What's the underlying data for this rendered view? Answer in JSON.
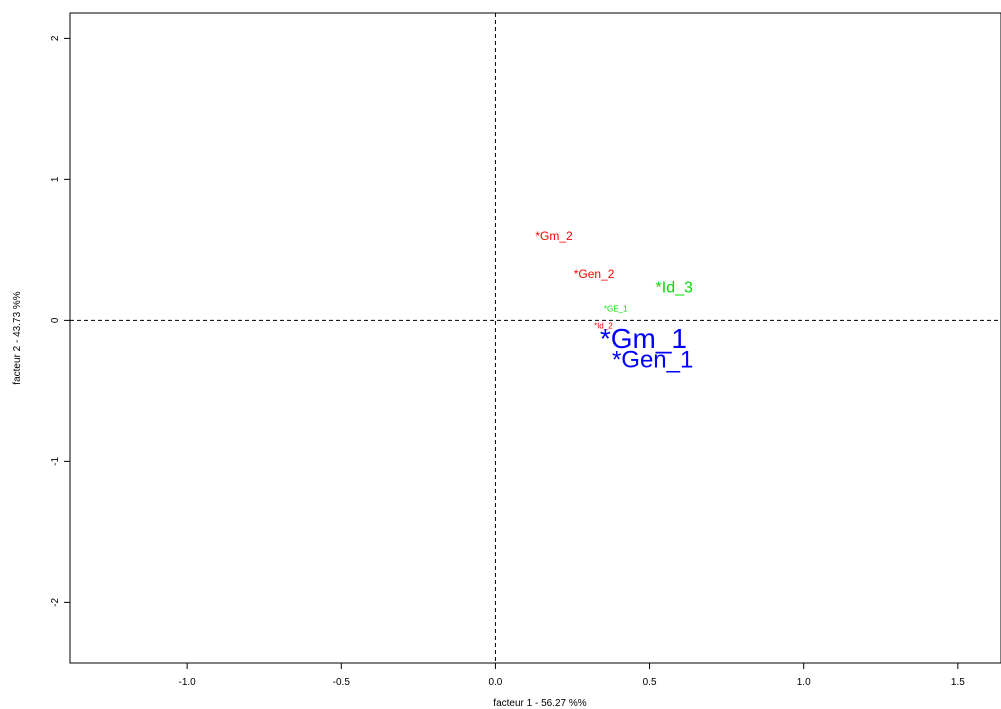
{
  "chart_data": {
    "type": "scatter",
    "xlabel": "facteur  1  - 56.27 %%",
    "ylabel": "facteur 2  - 43.73 %%",
    "xlim": [
      -1.38,
      1.64
    ],
    "ylim": [
      -2.43,
      2.18
    ],
    "xticks": [
      {
        "value": -1.0,
        "label": "-1.0"
      },
      {
        "value": -0.5,
        "label": "-0.5"
      },
      {
        "value": 0.0,
        "label": "0.0"
      },
      {
        "value": 0.5,
        "label": "0.5"
      },
      {
        "value": 1.0,
        "label": "1.0"
      },
      {
        "value": 1.5,
        "label": "1.5"
      }
    ],
    "yticks": [
      {
        "value": -2,
        "label": "-2"
      },
      {
        "value": -1,
        "label": "-1"
      },
      {
        "value": 0,
        "label": "0"
      },
      {
        "value": 1,
        "label": "1"
      },
      {
        "value": 2,
        "label": "2"
      }
    ],
    "reference_lines": {
      "x": 0,
      "y": 0,
      "style": "dashed"
    },
    "grid": false,
    "points": [
      {
        "label": "*Gm_2",
        "x": 0.19,
        "y": 0.6,
        "color": "#ff0000",
        "size": 2
      },
      {
        "label": "*Gen_2",
        "x": 0.32,
        "y": 0.33,
        "color": "#ff0000",
        "size": 2
      },
      {
        "label": "*Id_3",
        "x": 0.58,
        "y": 0.23,
        "color": "#00dd00",
        "size": 3
      },
      {
        "label": "*GE_1",
        "x": 0.39,
        "y": 0.08,
        "color": "#00dd00",
        "size": 1
      },
      {
        "label": "*Id_2",
        "x": 0.35,
        "y": -0.04,
        "color": "#ff0000",
        "size": 1
      },
      {
        "label": "*Gm_1",
        "x": 0.48,
        "y": -0.13,
        "color": "#0000ff",
        "size": 5
      },
      {
        "label": "*Gen_1",
        "x": 0.51,
        "y": -0.28,
        "color": "#0000ff",
        "size": 4
      }
    ]
  }
}
